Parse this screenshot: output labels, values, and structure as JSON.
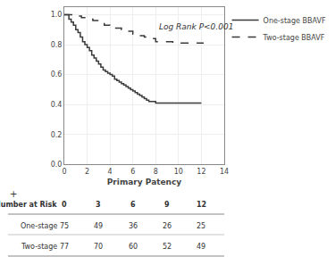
{
  "chart_data": {
    "type": "step",
    "xlabel": "Primary Patency",
    "xlim": [
      0,
      14
    ],
    "xticks": [
      0,
      2,
      4,
      6,
      8,
      10,
      12,
      14
    ],
    "ylim": [
      0.0,
      1.05
    ],
    "yticks": [
      {
        "value": 0.0,
        "label": "0.0"
      },
      0.2,
      0.4,
      0.6,
      0.8,
      {
        "value": 1.0,
        "label": "1.0"
      }
    ],
    "grid": true,
    "legend": "right",
    "annotation": "Log Rank P<0.001",
    "series": [
      {
        "name": "One-stage BBAVF",
        "color": "#3a3a3a",
        "line_style": "solid",
        "x": [
          0,
          0.2,
          0.4,
          0.6,
          0.8,
          1.0,
          1.2,
          1.4,
          1.6,
          1.8,
          2.0,
          2.2,
          2.4,
          2.6,
          2.8,
          3.0,
          3.2,
          3.4,
          3.6,
          3.8,
          4.0,
          4.2,
          4.4,
          4.6,
          4.8,
          5.0,
          5.2,
          5.4,
          5.6,
          5.8,
          6.0,
          6.2,
          6.4,
          6.6,
          6.8,
          7.0,
          7.2,
          7.4,
          7.6,
          7.8,
          8.0,
          8.5,
          9.0,
          9.5,
          10.0,
          10.5,
          11.0,
          11.5,
          12.0
        ],
        "values": [
          1.0,
          1.0,
          0.97,
          0.95,
          0.93,
          0.9,
          0.88,
          0.85,
          0.82,
          0.8,
          0.78,
          0.76,
          0.73,
          0.71,
          0.69,
          0.67,
          0.65,
          0.63,
          0.62,
          0.61,
          0.6,
          0.59,
          0.57,
          0.56,
          0.55,
          0.54,
          0.53,
          0.52,
          0.51,
          0.5,
          0.49,
          0.48,
          0.47,
          0.46,
          0.45,
          0.44,
          0.43,
          0.42,
          0.42,
          0.42,
          0.41,
          0.41,
          0.41,
          0.41,
          0.41,
          0.41,
          0.41,
          0.41,
          0.41
        ]
      },
      {
        "name": "Two-stage BBAVF",
        "color": "#3a3a3a",
        "line_style": "dash",
        "x": [
          0,
          0.5,
          1.0,
          1.5,
          2.0,
          2.5,
          3.0,
          3.5,
          4.0,
          4.5,
          5.0,
          5.5,
          6.0,
          6.5,
          7.0,
          7.5,
          8.0,
          8.5,
          9.0,
          9.5,
          10.0,
          10.5,
          11.0,
          11.5,
          12.0,
          12.2
        ],
        "values": [
          1.0,
          1.0,
          0.99,
          0.98,
          0.97,
          0.96,
          0.95,
          0.93,
          0.92,
          0.91,
          0.9,
          0.89,
          0.87,
          0.86,
          0.85,
          0.84,
          0.82,
          0.82,
          0.82,
          0.81,
          0.81,
          0.81,
          0.81,
          0.81,
          0.81,
          0.81
        ]
      }
    ],
    "table": {
      "symbol": "+",
      "title": "Number at Risk",
      "times": [
        0,
        3,
        6,
        9,
        12
      ],
      "rows": [
        {
          "label": "One-stage",
          "values": [
            75,
            49,
            36,
            26,
            25
          ]
        },
        {
          "label": "Two-stage",
          "values": [
            77,
            70,
            60,
            52,
            49
          ]
        }
      ]
    }
  }
}
